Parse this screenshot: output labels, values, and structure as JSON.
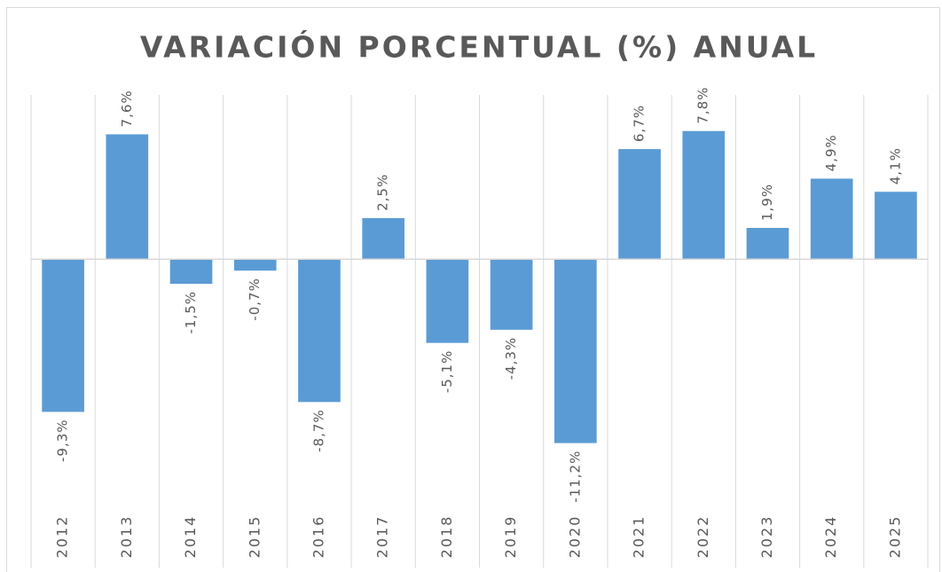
{
  "chart_data": {
    "type": "bar",
    "title": "VARIACIÓN PORCENTUAL (%) ANUAL",
    "categories": [
      "2012",
      "2013",
      "2014",
      "2015",
      "2016",
      "2017",
      "2018",
      "2019",
      "2020",
      "2021",
      "2022",
      "2023",
      "2024",
      "2025"
    ],
    "values": [
      -9.3,
      7.6,
      -1.5,
      -0.7,
      -8.7,
      2.5,
      -5.1,
      -4.3,
      -11.2,
      6.7,
      7.8,
      1.9,
      4.9,
      4.1
    ],
    "value_labels": [
      "-9,3%",
      "7,6%",
      "-1,5%",
      "-0,7%",
      "-8,7%",
      "2,5%",
      "-5,1%",
      "-4,3%",
      "-11,2%",
      "6,7%",
      "7,8%",
      "1,9%",
      "4,9%",
      "4,1%"
    ],
    "color": "#5b9bd5",
    "ylim": [
      -15,
      10
    ]
  }
}
